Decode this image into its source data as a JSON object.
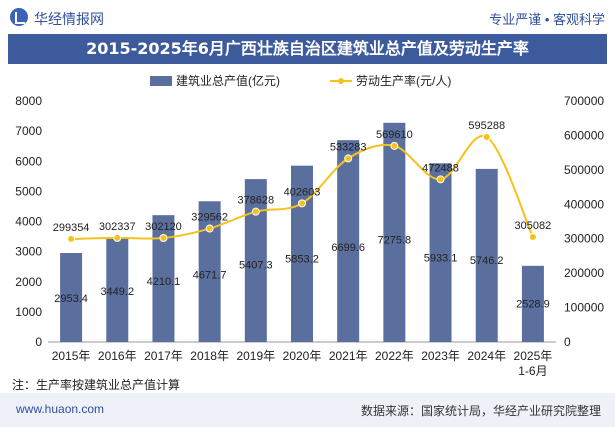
{
  "header": {
    "brand": "华经情报网",
    "tags": "专业严谨 • 客观科学"
  },
  "title": "2015-2025年6月广西壮族自治区建筑业总产值及劳动生产率",
  "note": "注：生产率按建筑业总产值计算",
  "footer": {
    "url": "www.huaon.com",
    "source": "数据来源：国家统计局，华经产业研究院整理"
  },
  "colors": {
    "bar": "#5b6f9e",
    "line": "#f4c21a",
    "title_bg": "#3c5a9c"
  },
  "chart_data": {
    "type": "bar+line",
    "categories": [
      "2015年",
      "2016年",
      "2017年",
      "2018年",
      "2019年",
      "2020年",
      "2021年",
      "2022年",
      "2023年",
      "2024年",
      "2025年\n1-6月"
    ],
    "series": [
      {
        "name": "建筑业总产值(亿元)",
        "type": "bar",
        "axis": "left",
        "values": [
          2953.4,
          3449.2,
          4210.1,
          4671.7,
          5407.3,
          5853.2,
          6699.6,
          7275.8,
          5933.1,
          5746.2,
          2528.9
        ]
      },
      {
        "name": "劳动生产率(元/人)",
        "type": "line",
        "axis": "right",
        "values": [
          299354,
          302337,
          302120,
          329562,
          378628,
          402603,
          533283,
          569610,
          472488,
          595288,
          305082
        ]
      }
    ],
    "y_left": {
      "min": 0,
      "max": 8000,
      "ticks": [
        0,
        1000,
        2000,
        3000,
        4000,
        5000,
        6000,
        7000,
        8000
      ]
    },
    "y_right": {
      "min": 0,
      "max": 700000,
      "ticks": [
        0,
        100000,
        200000,
        300000,
        400000,
        500000,
        600000,
        700000
      ]
    },
    "legend_position": "top-center"
  }
}
